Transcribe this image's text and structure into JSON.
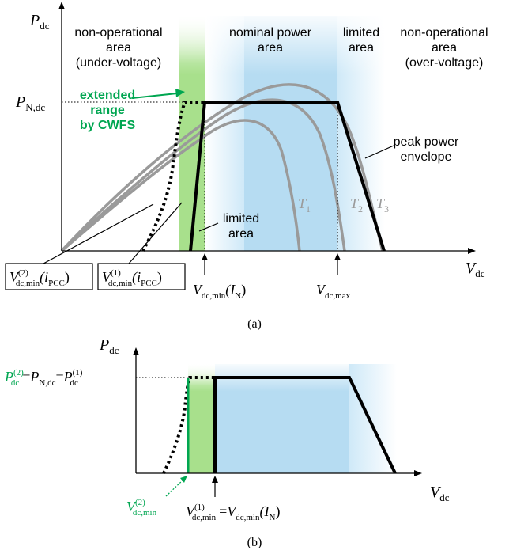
{
  "panel_a": {
    "y_axis": {
      "sym": "P",
      "sub": "dc"
    },
    "x_axis": {
      "sym": "V",
      "sub": "dc"
    },
    "p_nom_label": {
      "sym": "P",
      "sub": "N,dc"
    },
    "regions": {
      "under_voltage": [
        "non-operational",
        "area",
        "(under-voltage)"
      ],
      "nominal": [
        "nominal power",
        "area"
      ],
      "limited_top": [
        "limited",
        "area"
      ],
      "over_voltage": [
        "non-operational",
        "area",
        "(over-voltage)"
      ],
      "limited_bottom": [
        "limited",
        "area"
      ]
    },
    "extended": [
      "extended",
      "range",
      "by CWFS"
    ],
    "envelope": [
      "peak power",
      "envelope"
    ],
    "curves": [
      {
        "sym": "T",
        "sub": "1"
      },
      {
        "sym": "T",
        "sub": "2"
      },
      {
        "sym": "T",
        "sub": "3"
      }
    ],
    "vmin2": {
      "sym": "V",
      "sup": "(2)",
      "sub": "dc,min",
      "arg": "(i",
      "argsub": "PCC",
      "close": ")"
    },
    "vmin1": {
      "sym": "V",
      "sup": "(1)",
      "sub": "dc,min",
      "arg": "(i",
      "argsub": "PCC",
      "close": ")"
    },
    "vmin_in": {
      "sym": "V",
      "sub": "dc,min",
      "arg": "(I",
      "argsub": "N",
      "close": ")"
    },
    "vmax": {
      "sym": "V",
      "sub": "dc,max"
    },
    "caption": "(a)"
  },
  "panel_b": {
    "y_axis": {
      "sym": "P",
      "sub": "dc"
    },
    "x_axis": {
      "sym": "V",
      "sub": "dc"
    },
    "p_label": {
      "p2": "P",
      "p2_sup": "(2)",
      "p2_sub": "dc",
      "eq": "=",
      "pn": "P",
      "pn_sub": "N,dc",
      "p1": "P",
      "p1_sup": "(1)",
      "p1_sub": "dc"
    },
    "vmin2": {
      "sym": "V",
      "sup": "(2)",
      "sub": "dc,min"
    },
    "vmin1": {
      "sym": "V",
      "sup": "(1)",
      "sub": "dc,min",
      "eq": "=",
      "sym2": "V",
      "sub2": "dc,min",
      "arg": "(I",
      "argsub": "N",
      "close": ")"
    },
    "caption": "(b)"
  },
  "colors": {
    "green": "#00a651",
    "green_fill": "#a8e08c",
    "blue_fill": "#b6dcf2",
    "light_blue": "#dcf0fb",
    "gray_curve": "#9a9a9a",
    "black": "#000000"
  }
}
